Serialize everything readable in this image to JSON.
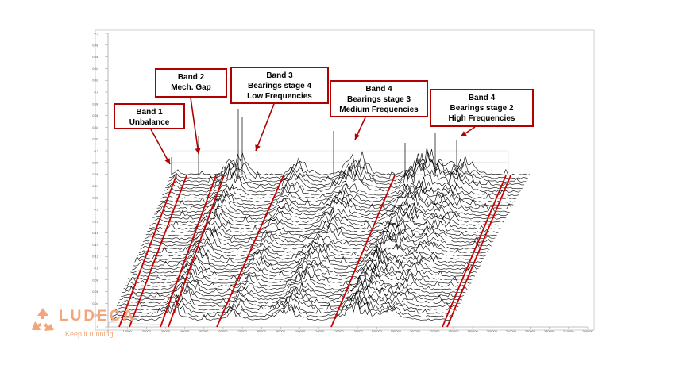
{
  "chart_data": {
    "type": "waterfall",
    "x": {
      "ticks": [
        "0",
        "10000",
        "20000",
        "30000",
        "40000",
        "50000",
        "60000",
        "70000",
        "80000",
        "90000",
        "100000",
        "110000",
        "120000",
        "130000",
        "140000",
        "150000",
        "160000",
        "170000",
        "180000",
        "190000",
        "200000",
        "210000",
        "220000",
        "230000",
        "240000",
        "250000"
      ],
      "range": [
        0,
        250000
      ]
    },
    "y": {
      "ticks": [
        "0",
        "0.02",
        "0.04",
        "0.06",
        "0.08",
        "0.1",
        "0.12",
        "0.14",
        "0.16",
        "0.18",
        "0.2",
        "0.22",
        "0.24",
        "0.26",
        "0.28",
        "0.3",
        "0.32",
        "0.34",
        "0.36",
        "0.38",
        "0.4",
        "0.42",
        "0.44",
        "0.46",
        "0.48",
        "0.5"
      ],
      "range": [
        0,
        0.5
      ]
    },
    "bands": [
      {
        "lines": [
          "Band 1",
          "Unbalance"
        ]
      },
      {
        "lines": [
          "Band 2",
          "Mech. Gap"
        ]
      },
      {
        "lines": [
          "Band 3",
          "Bearings stage 4",
          "Low Frequencies"
        ]
      },
      {
        "lines": [
          "Band 4",
          "Bearings stage 3",
          "Medium Frequencies"
        ]
      },
      {
        "lines": [
          "Band 4",
          "Bearings stage 2",
          "High Frequencies"
        ]
      }
    ],
    "grid": true,
    "colors": {
      "spectrum": "#000000",
      "band_lines": "#cc0000",
      "callout_border": "#b00000"
    }
  },
  "logo": {
    "name": "LUDECA",
    "tagline": "Keep it running.",
    "color": "#f4a57a"
  }
}
